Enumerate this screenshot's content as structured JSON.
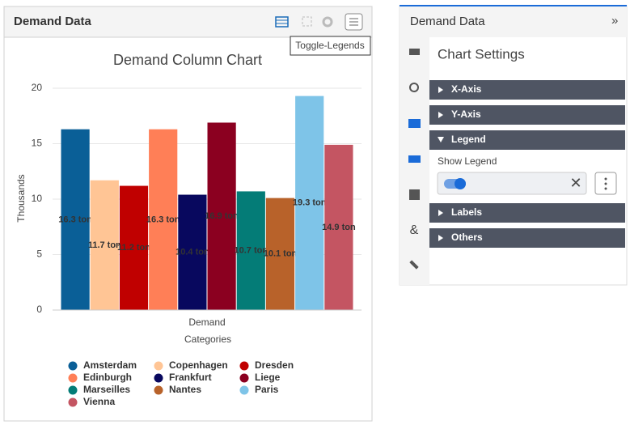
{
  "panel": {
    "title": "Demand Data",
    "tooltip": "Toggle-Legends"
  },
  "chart_data": {
    "type": "bar",
    "title": "Demand Column Chart",
    "xlabel": "Categories",
    "ylabel": "Thousands",
    "categories": [
      "Demand"
    ],
    "series": [
      {
        "name": "Amsterdam",
        "color": "#0a5f97",
        "values": [
          16.3
        ],
        "value_labels": [
          "16.3 ton"
        ]
      },
      {
        "name": "Copenhagen",
        "color": "#ffc595",
        "values": [
          11.7
        ],
        "value_labels": [
          "11.7 ton"
        ]
      },
      {
        "name": "Dresden",
        "color": "#c00000",
        "values": [
          11.2
        ],
        "value_labels": [
          "11.2 ton"
        ]
      },
      {
        "name": "Edinburgh",
        "color": "#ff7f57",
        "values": [
          16.3
        ],
        "value_labels": [
          "16.3 ton"
        ]
      },
      {
        "name": "Frankfurt",
        "color": "#08085e",
        "values": [
          10.4
        ],
        "value_labels": [
          "10.4 ton"
        ]
      },
      {
        "name": "Liege",
        "color": "#8b0020",
        "values": [
          16.9
        ],
        "value_labels": [
          "16.9 ton"
        ]
      },
      {
        "name": "Marseilles",
        "color": "#047c77",
        "values": [
          10.7
        ],
        "value_labels": [
          "10.7 ton"
        ]
      },
      {
        "name": "Nantes",
        "color": "#b8622a",
        "values": [
          10.1
        ],
        "value_labels": [
          "10.1 ton"
        ]
      },
      {
        "name": "Paris",
        "color": "#7ec4e8",
        "values": [
          19.3
        ],
        "value_labels": [
          "19.3 ton"
        ]
      },
      {
        "name": "Vienna",
        "color": "#c45562",
        "values": [
          14.9
        ],
        "value_labels": [
          "14.9 ton"
        ]
      }
    ],
    "ylim": [
      0,
      20
    ],
    "yticks": [
      0,
      5,
      10,
      15,
      20
    ],
    "grid": true
  },
  "settings": {
    "header": "Demand Data",
    "title": "Chart Settings",
    "sections": [
      "X-Axis",
      "Y-Axis",
      "Legend",
      "Labels",
      "Others"
    ],
    "show_legend_label": "Show Legend"
  }
}
